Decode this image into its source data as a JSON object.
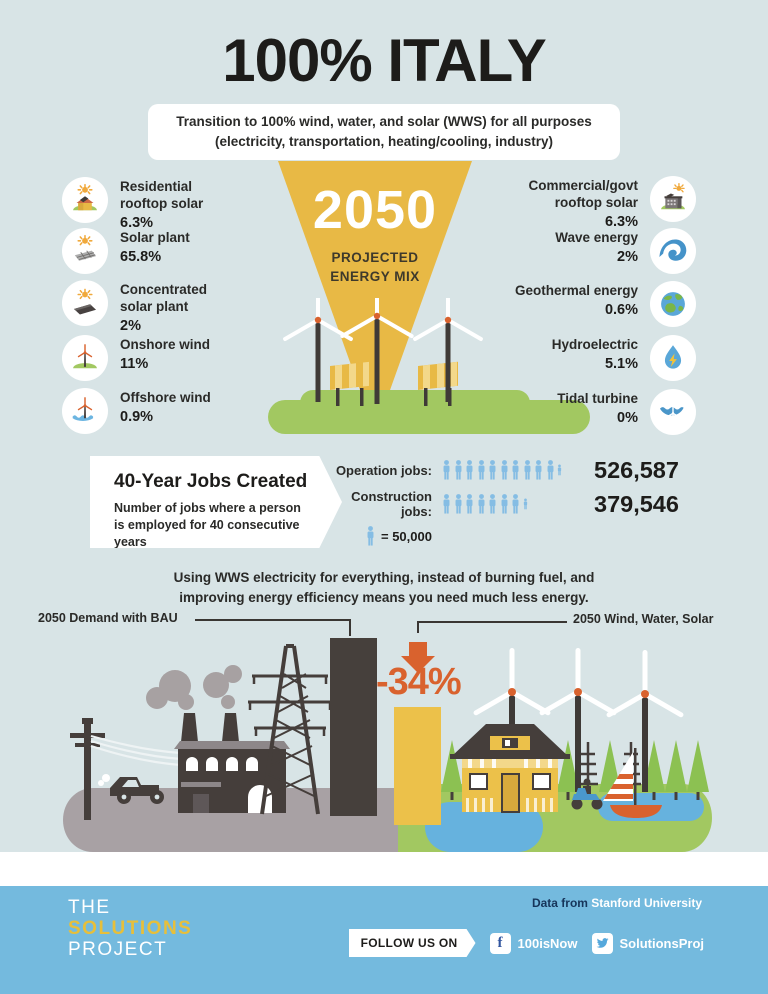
{
  "header": {
    "title": "100% ITALY",
    "subtitle_line1": "Transition to 100% wind, water, and solar (WWS) for all purposes",
    "subtitle_line2": "(electricity, transportation, heating/cooling, industry)"
  },
  "energy_mix": {
    "year": "2050",
    "mix_label_line1": "PROJECTED",
    "mix_label_line2": "ENERGY MIX",
    "left": [
      {
        "label": "Residential rooftop solar",
        "value": "6.3%",
        "icon": "residential-rooftop-solar-icon"
      },
      {
        "label": "Solar plant",
        "value": "65.8%",
        "icon": "solar-plant-icon"
      },
      {
        "label": "Concentrated solar plant",
        "value": "2%",
        "icon": "concentrated-solar-plant-icon"
      },
      {
        "label": "Onshore wind",
        "value": "11%",
        "icon": "onshore-wind-icon"
      },
      {
        "label": "Offshore wind",
        "value": "0.9%",
        "icon": "offshore-wind-icon"
      }
    ],
    "right": [
      {
        "label": "Commercial/govt rooftop solar",
        "value": "6.3%",
        "icon": "commercial-rooftop-solar-icon"
      },
      {
        "label": "Wave energy",
        "value": "2%",
        "icon": "wave-energy-icon"
      },
      {
        "label": "Geothermal energy",
        "value": "0.6%",
        "icon": "geothermal-energy-icon"
      },
      {
        "label": "Hydroelectric",
        "value": "5.1%",
        "icon": "hydroelectric-icon"
      },
      {
        "label": "Tidal turbine",
        "value": "0%",
        "icon": "tidal-turbine-icon"
      }
    ]
  },
  "jobs": {
    "title": "40-Year Jobs Created",
    "desc_line1": "Number of jobs where a person",
    "desc_line2": "is employed for 40 consecutive years",
    "rows": [
      {
        "label": "Operation jobs:",
        "value": "526,587",
        "icons_full": 10,
        "icon_partial": true
      },
      {
        "label": "Construction jobs:",
        "value": "379,546",
        "icons_full": 7,
        "icon_partial": true
      }
    ],
    "legend_icon": {
      "icons_full": 1,
      "icon_partial": false
    },
    "legend_text": "= 50,000"
  },
  "efficiency": {
    "desc_line1": "Using WWS electricity for everything, instead of burning fuel, and",
    "desc_line2": "improving energy efficiency means you need much less energy.",
    "bau_label": "2050 Demand with BAU",
    "wws_label": "2050 Wind, Water, Solar",
    "change": "-34%"
  },
  "footer": {
    "logo_line1": "THE",
    "logo_line2": "SOLUTIONS",
    "logo_line3": "PROJECT",
    "data_from": "Data from",
    "data_source": "Stanford University",
    "follow_label": "FOLLOW US ON",
    "facebook_handle": "100isNow",
    "twitter_handle": "SolutionsProj"
  },
  "colors": {
    "background": "#d8e4e6",
    "accent_yellow": "#e8b945",
    "accent_orange": "#d9622e",
    "footer_blue": "#74bade",
    "person_blue": "#85bde4",
    "dark": "#453e3b",
    "grass_green": "#a2c861"
  },
  "chart_data": [
    {
      "type": "pie",
      "title": "2050 Projected Energy Mix (Italy, % of total)",
      "categories": [
        "Residential rooftop solar",
        "Solar plant",
        "Concentrated solar plant",
        "Onshore wind",
        "Offshore wind",
        "Commercial/govt rooftop solar",
        "Wave energy",
        "Geothermal energy",
        "Hydroelectric",
        "Tidal turbine"
      ],
      "values": [
        6.3,
        65.8,
        2,
        11,
        0.9,
        6.3,
        2,
        0.6,
        5.1,
        0
      ]
    },
    {
      "type": "bar",
      "title": "40-Year Jobs Created",
      "categories": [
        "Operation jobs",
        "Construction jobs"
      ],
      "values": [
        526587,
        379546
      ],
      "icon_unit": 50000,
      "legend_position": "below"
    },
    {
      "type": "bar",
      "title": "2050 Energy Demand Comparison",
      "categories": [
        "2050 Demand with BAU",
        "2050 Wind, Water, Solar"
      ],
      "values": [
        100,
        66
      ],
      "annotation": "-34%"
    }
  ]
}
